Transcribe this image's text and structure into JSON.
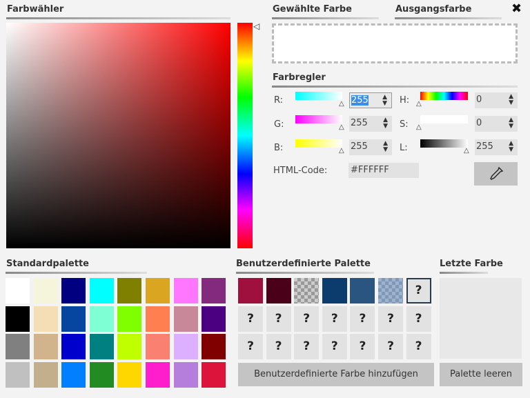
{
  "picker": {
    "title": "Farbwähler",
    "base_color": "#FF0000"
  },
  "selected": {
    "title": "Gewählte Farbe",
    "original_title": "Ausgangsfarbe",
    "color": "#FFFFFF",
    "close_icon": "close-icon"
  },
  "sliders": {
    "title": "Farbregler",
    "rows": [
      {
        "label": "R:",
        "value": "255",
        "hsl_label": "H:",
        "hsl_value": "0"
      },
      {
        "label": "G:",
        "value": "255",
        "hsl_label": "S:",
        "hsl_value": "0"
      },
      {
        "label": "B:",
        "value": "255",
        "hsl_label": "L:",
        "hsl_value": "255"
      }
    ],
    "html_label": "HTML-Code:",
    "html_value": "#FFFFFF",
    "eyedropper_icon": "eyedropper-icon"
  },
  "standard": {
    "title": "Standardpalette",
    "colors": [
      "#FFFFFF",
      "#F5F5DC",
      "#000080",
      "#00FFFF",
      "#808000",
      "#DAA520",
      "#FF77FF",
      "#832A7E",
      "#000000",
      "#F5DEB3",
      "#0645A0",
      "#7FFFD4",
      "#7FFF00",
      "#FF7F50",
      "#C9889A",
      "#4B0082",
      "#808080",
      "#D2B48C",
      "#0000CD",
      "#008080",
      "#BFFF00",
      "#FA8072",
      "#DDB0FF",
      "#800000",
      "#C0C0C0",
      "#C4AF8C",
      "#0080FF",
      "#228B22",
      "#FFD700",
      "#FF1ECC",
      "#B57EDC",
      "#DC143C"
    ]
  },
  "custom": {
    "title": "Benutzerdefinierte Palette",
    "colors": [
      "#A0103F",
      "#4A0018",
      "checker-gray",
      "#0C3B6E",
      "#2A5580",
      "checker-blue"
    ],
    "empty": "?",
    "add_label": "Benutzerdefinierte Farbe hinzufügen"
  },
  "recent": {
    "title": "Letzte Farbe",
    "clear_label": "Palette leeren"
  }
}
